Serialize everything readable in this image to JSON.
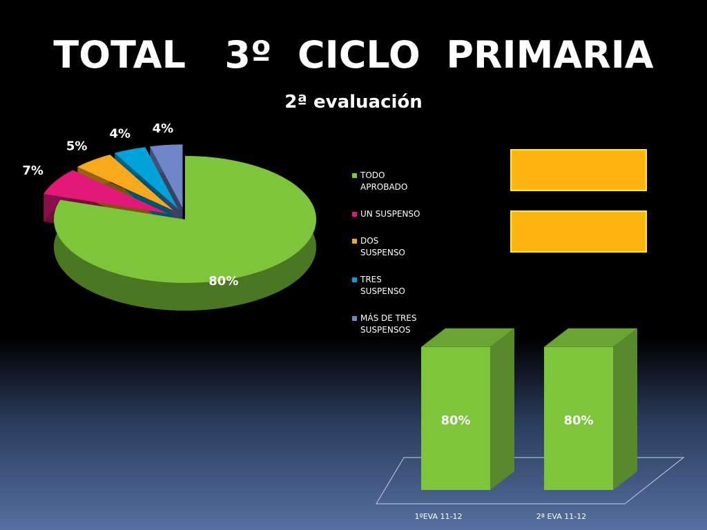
{
  "chart_data": [
    {
      "type": "pie",
      "title": "TOTAL   3º  CICLO  PRIMARIA",
      "subtitle": "2ª evaluación",
      "categories": [
        "TODO APROBADO",
        "UN SUSPENSO",
        "DOS SUSPENSO",
        "TRES SUSPENSO",
        "MÁS DE TRES SUSPENSOS"
      ],
      "values": [
        80,
        7,
        5,
        4,
        4
      ],
      "value_labels": [
        "80%",
        "7%",
        "5%",
        "4%",
        "4%"
      ],
      "colors": [
        "#7dc63b",
        "#e3197a",
        "#f7a81b",
        "#00a3d9",
        "#6f86c8"
      ]
    },
    {
      "type": "bar",
      "categories": [
        "1ºEVA 11-12",
        "2ª EVA 11-12"
      ],
      "values": [
        80,
        80
      ],
      "value_labels": [
        "80%",
        "80%"
      ],
      "color": "#7dc63b"
    }
  ]
}
